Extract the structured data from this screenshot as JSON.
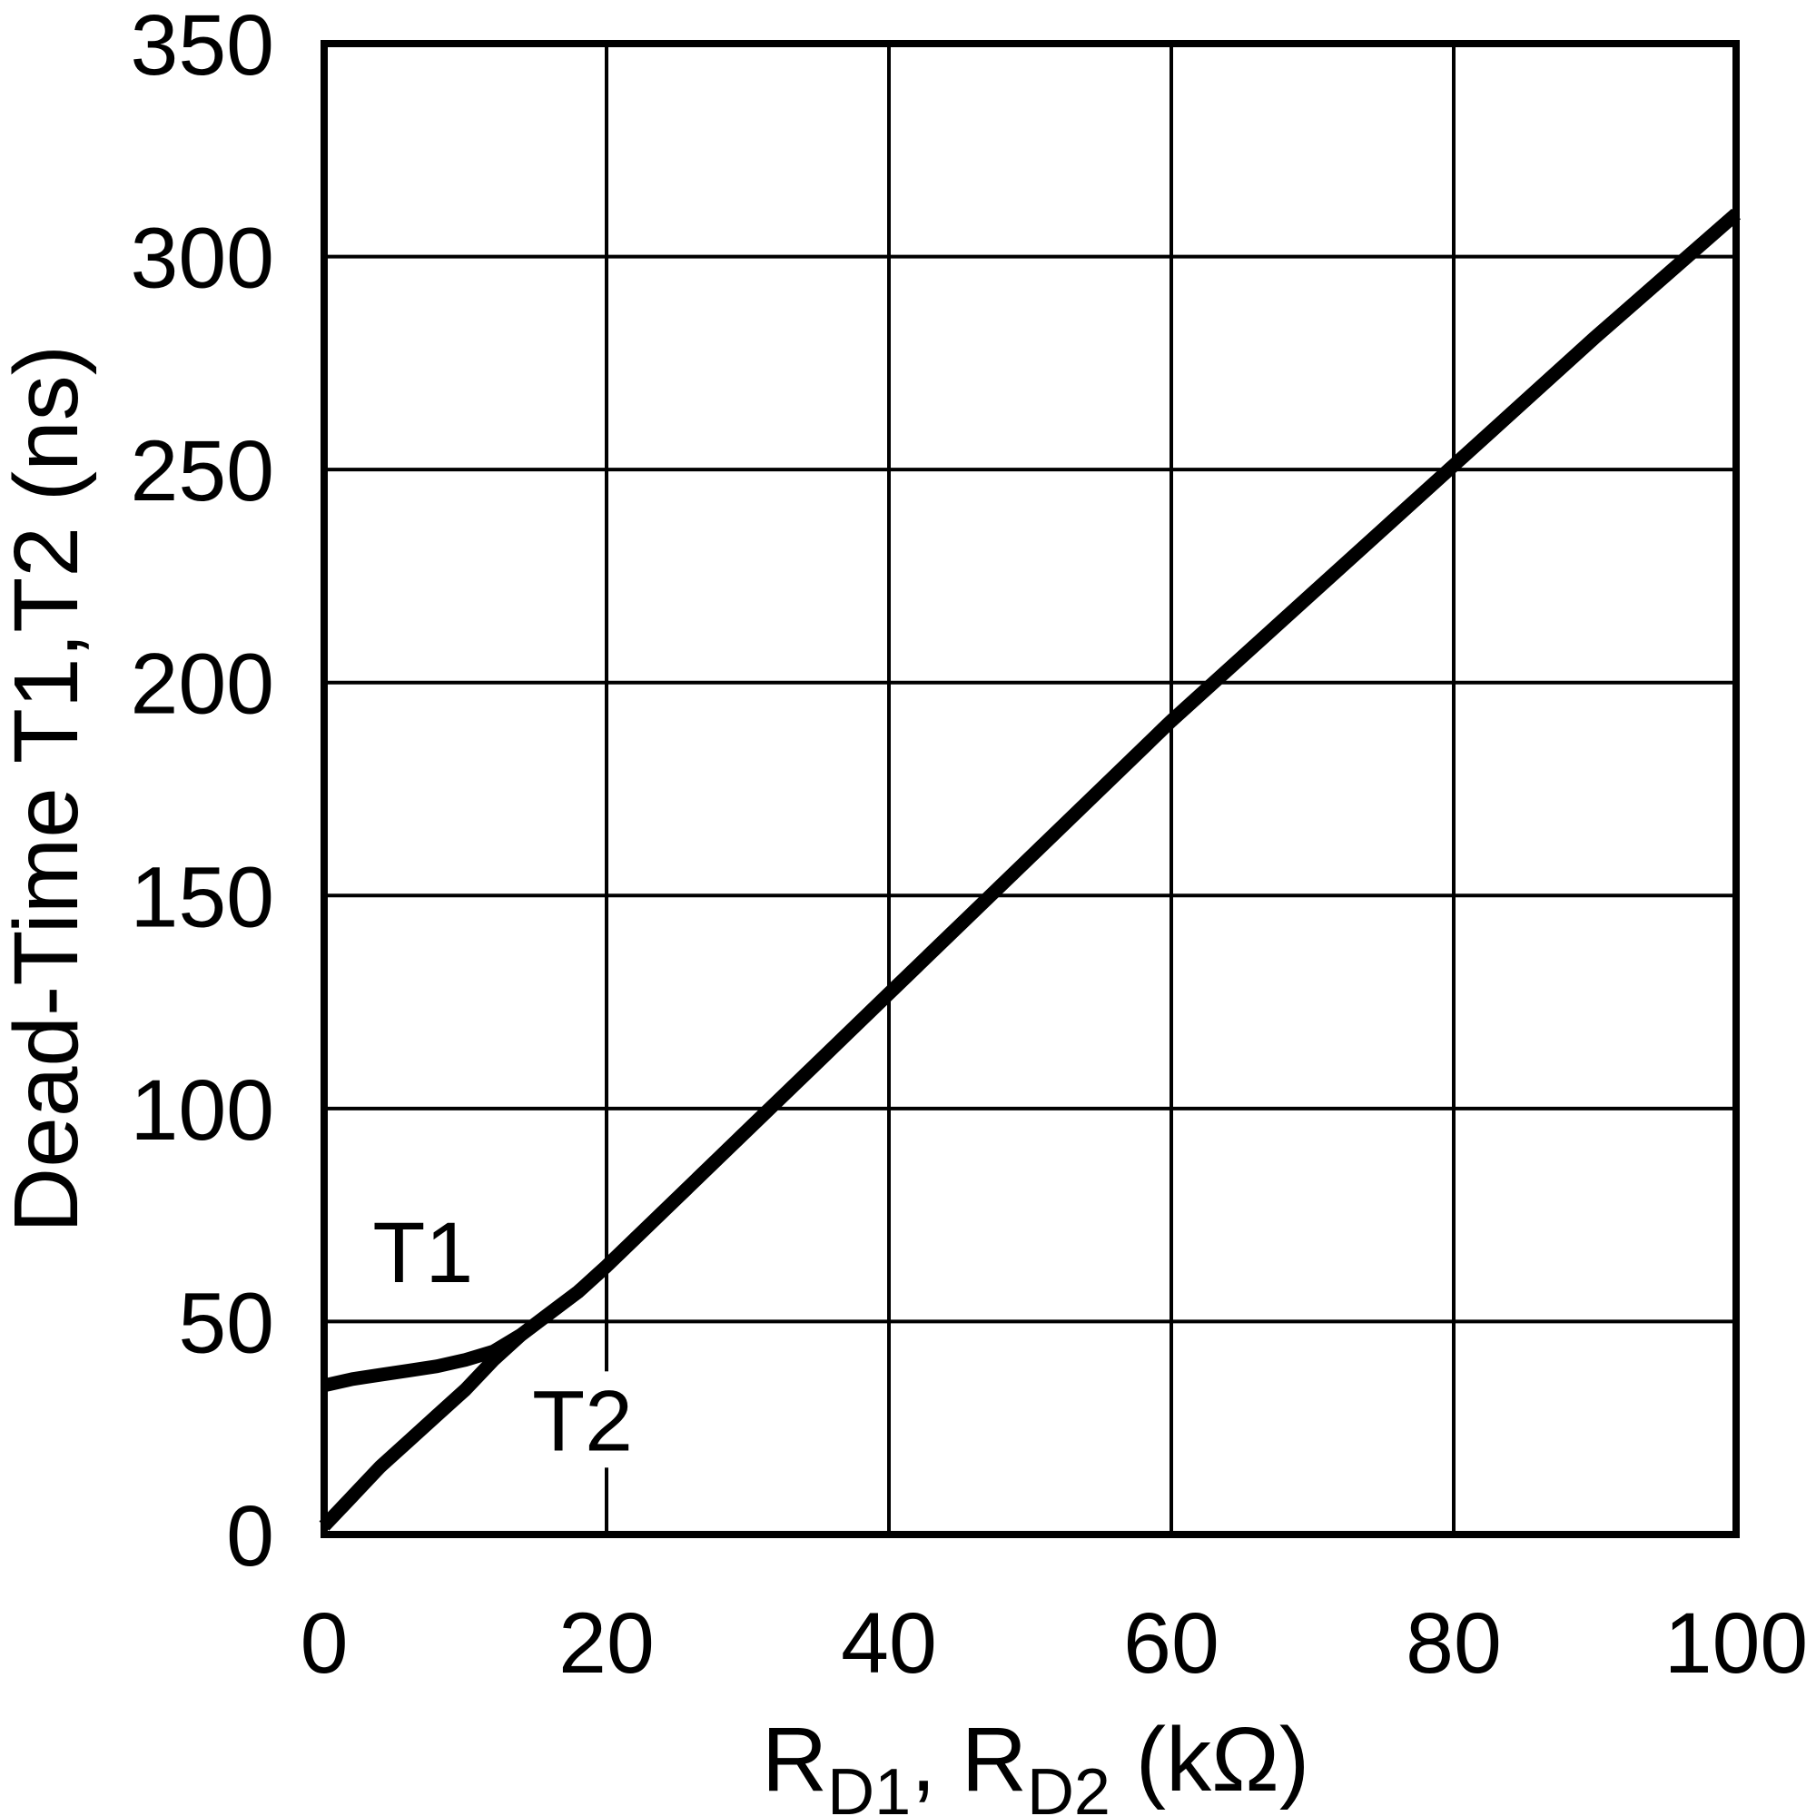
{
  "figure": {
    "background": "#ffffff",
    "ink": "#000000"
  },
  "chart_data": {
    "type": "line",
    "title": "",
    "ylabel": "Dead-Time T1,T2 (ns)",
    "xlabel_plain": "RD1, RD2 (kOhm)",
    "xlabel_parts": [
      {
        "text": "R",
        "sub": false
      },
      {
        "text": "D1",
        "sub": true
      },
      {
        "text": ", R",
        "sub": false
      },
      {
        "text": "D2",
        "sub": true
      },
      {
        "text": " (kΩ)",
        "sub": false
      }
    ],
    "xlim": [
      0,
      100
    ],
    "ylim": [
      0,
      350
    ],
    "xticks": [
      0,
      20,
      40,
      60,
      80,
      100
    ],
    "yticks": [
      0,
      50,
      100,
      150,
      200,
      250,
      300,
      350
    ],
    "grid": true,
    "legend_position": "inline-annotations",
    "series": [
      {
        "name": "T1",
        "x": [
          0,
          2,
          4,
          6,
          8,
          10,
          12,
          14,
          16,
          18,
          20,
          25,
          30,
          35,
          40,
          45,
          50,
          55,
          60,
          65,
          70,
          75,
          80,
          85,
          90,
          95,
          100
        ],
        "y": [
          35,
          36.5,
          37.5,
          38.5,
          39.5,
          41,
          43,
          47,
          52,
          57,
          63,
          79,
          95,
          111,
          127,
          143,
          159,
          175,
          191,
          206,
          221,
          236,
          251,
          266,
          281,
          295.5,
          310
        ],
        "label_pos": {
          "x": 7,
          "y": 66.5
        }
      },
      {
        "name": "T2",
        "x": [
          0,
          2,
          4,
          6,
          8,
          10,
          12,
          14,
          16,
          18,
          20,
          25,
          30,
          35,
          40,
          45,
          50,
          55,
          60,
          65,
          70,
          75,
          80,
          85,
          90,
          95,
          100
        ],
        "y": [
          2,
          9,
          16,
          22,
          28,
          34,
          41,
          47,
          52,
          57,
          63,
          79,
          95,
          111,
          127,
          143,
          159,
          175,
          191,
          206,
          221,
          236,
          251,
          266,
          281,
          295.5,
          310
        ],
        "label_pos": {
          "x": 18.3,
          "y": 27
        }
      }
    ]
  }
}
